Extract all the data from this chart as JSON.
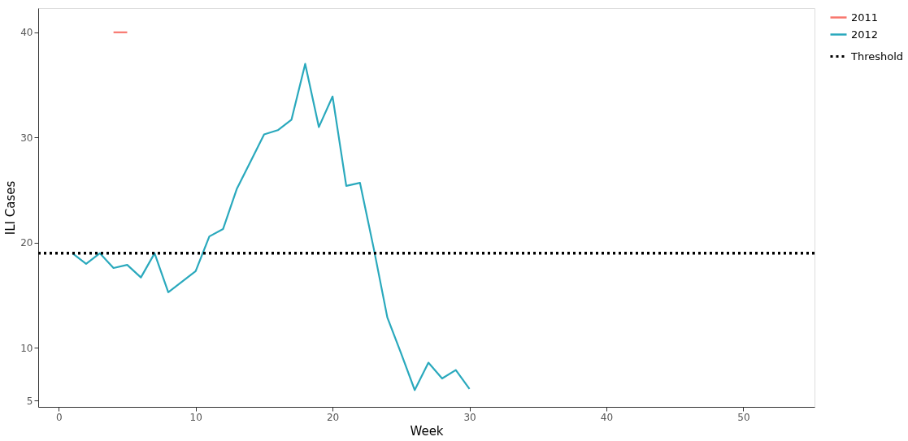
{
  "chart_data": {
    "type": "line",
    "xlabel": "Week",
    "ylabel": "ILI Cases",
    "xlim": [
      -1.5,
      55.2
    ],
    "ylim": [
      4.4,
      42.3
    ],
    "xticks": [
      0,
      10,
      20,
      30,
      40,
      50
    ],
    "yticks": [
      5,
      10,
      20,
      30,
      40
    ],
    "series": [
      {
        "name": "2011",
        "color": "#f8766d",
        "x": [
          4,
          5
        ],
        "values": [
          40,
          40
        ]
      },
      {
        "name": "2012",
        "color": "#2aa9bd",
        "x": [
          1,
          2,
          3,
          4,
          5,
          6,
          7,
          8,
          9,
          10,
          11,
          12,
          13,
          14,
          15,
          16,
          17,
          18,
          19,
          20,
          21,
          22,
          23,
          24,
          25,
          26,
          27,
          28,
          29,
          30
        ],
        "values": [
          19.0,
          18.0,
          19.0,
          17.6,
          17.9,
          16.7,
          19.0,
          15.3,
          16.3,
          17.3,
          20.6,
          21.3,
          25.1,
          27.7,
          30.3,
          30.7,
          31.7,
          37.0,
          31.0,
          33.9,
          25.4,
          25.7,
          19.5,
          12.9,
          9.5,
          6.0,
          8.6,
          7.1,
          7.9,
          6.1
        ]
      }
    ],
    "ref_lines": [
      {
        "axis": "y",
        "value": 19,
        "label": "Threshold",
        "color": "#000000",
        "line_style": "dotted"
      }
    ],
    "grid": false,
    "legend": "top right",
    "marker": "none"
  }
}
